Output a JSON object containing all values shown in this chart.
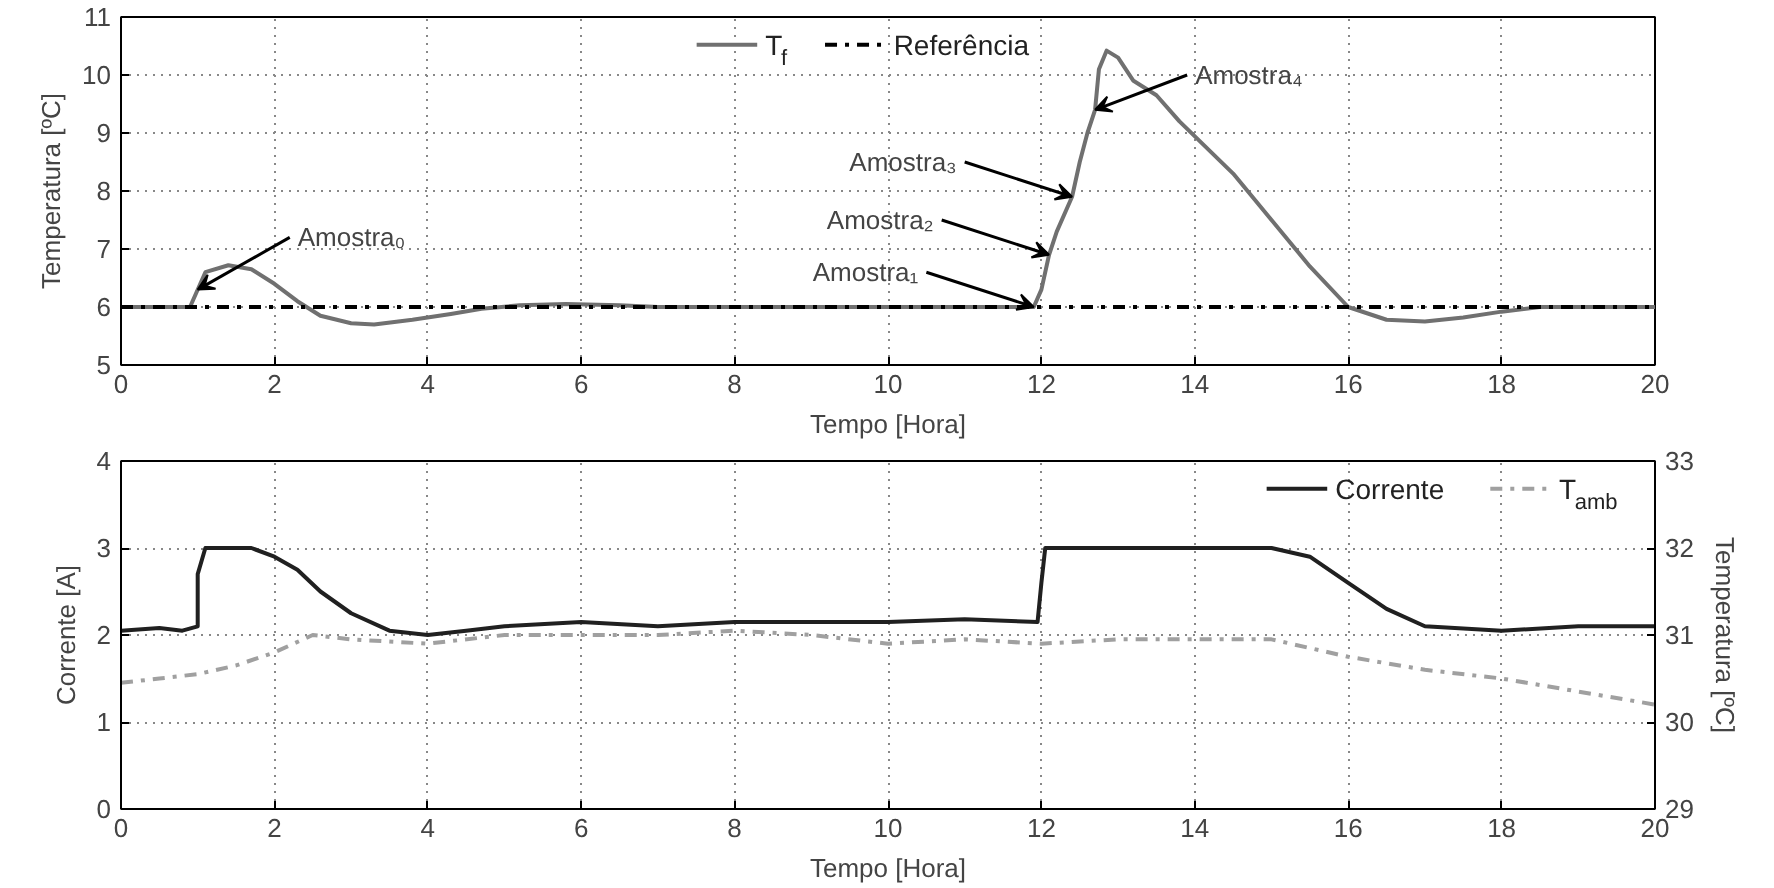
{
  "chart_data": [
    {
      "type": "line",
      "xlabel": "Tempo [Hora]",
      "ylabel": "Temperatura [ºC]",
      "xlim": [
        0,
        20
      ],
      "ylim": [
        5,
        11
      ],
      "xticks": [
        0,
        2,
        4,
        6,
        8,
        10,
        12,
        14,
        16,
        18,
        20
      ],
      "yticks": [
        5,
        6,
        7,
        8,
        9,
        10,
        11
      ],
      "grid": true,
      "legend": "top",
      "series": [
        {
          "name": "T$_{f}$",
          "color": "#707070",
          "line_style": "solid",
          "x": [
            0,
            0.9,
            1.1,
            1.4,
            1.7,
            2.0,
            2.3,
            2.6,
            3.0,
            3.3,
            3.8,
            4.3,
            4.7,
            5.2,
            5.8,
            6.5,
            7,
            8,
            9,
            10,
            11,
            11.9,
            12.0,
            12.1,
            12.2,
            12.4,
            12.5,
            12.6,
            12.7,
            12.75,
            12.85,
            13.0,
            13.2,
            13.5,
            13.8,
            14.5,
            15.0,
            15.5,
            16.0,
            16.5,
            17.0,
            17.5,
            18.0,
            18.5,
            19,
            20
          ],
          "values": [
            6.0,
            6.0,
            6.6,
            6.72,
            6.65,
            6.4,
            6.1,
            5.85,
            5.72,
            5.7,
            5.78,
            5.88,
            5.97,
            6.03,
            6.05,
            6.03,
            6.0,
            6.0,
            6.0,
            6.0,
            6.0,
            6.0,
            6.3,
            6.9,
            7.3,
            7.9,
            8.5,
            9.0,
            9.4,
            10.1,
            10.42,
            10.3,
            9.9,
            9.65,
            9.2,
            8.3,
            7.5,
            6.7,
            6.0,
            5.78,
            5.75,
            5.82,
            5.92,
            6.0,
            6.0,
            6.0
          ]
        },
        {
          "name": "Referência",
          "color": "#000000",
          "line_style": "dashdot",
          "x": [
            0,
            20
          ],
          "values": [
            6,
            6
          ]
        }
      ],
      "annotations": [
        {
          "text": "Amostra₀",
          "x": 1.0,
          "y": 6.3
        },
        {
          "text": "Amostra₁",
          "x": 11.9,
          "y": 6.0
        },
        {
          "text": "Amostra₂",
          "x": 12.1,
          "y": 6.9
        },
        {
          "text": "Amostra₃",
          "x": 12.4,
          "y": 7.9
        },
        {
          "text": "Amostra₄",
          "x": 12.7,
          "y": 9.4
        }
      ]
    },
    {
      "type": "line",
      "xlabel": "Tempo [Hora]",
      "ylabel": "Corrente [A]",
      "y2label": "Temperatura [ºC]",
      "xlim": [
        0,
        20
      ],
      "ylim": [
        0,
        4
      ],
      "y2lim": [
        29,
        33
      ],
      "xticks": [
        0,
        2,
        4,
        6,
        8,
        10,
        12,
        14,
        16,
        18,
        20
      ],
      "yticks": [
        0,
        1,
        2,
        3,
        4
      ],
      "y2ticks": [
        29,
        30,
        31,
        32,
        33
      ],
      "grid": true,
      "legend": "top right",
      "series": [
        {
          "name": "Corrente",
          "color": "#202020",
          "line_style": "solid",
          "x": [
            0,
            0.5,
            0.8,
            1.0,
            1.0,
            1.1,
            1.7,
            2.0,
            2.3,
            2.6,
            3.0,
            3.5,
            4.0,
            4.5,
            5,
            6,
            7,
            8,
            9,
            10,
            11,
            11.95,
            12.0,
            12.05,
            15.0,
            15.5,
            16,
            16.5,
            17,
            18,
            19,
            20
          ],
          "values": [
            2.05,
            2.08,
            2.05,
            2.1,
            2.7,
            3.0,
            3.0,
            2.9,
            2.75,
            2.5,
            2.25,
            2.05,
            2.0,
            2.05,
            2.1,
            2.15,
            2.1,
            2.15,
            2.15,
            2.15,
            2.18,
            2.15,
            2.6,
            3.0,
            3.0,
            2.9,
            2.6,
            2.3,
            2.1,
            2.05,
            2.1,
            2.1
          ]
        },
        {
          "name": "T$_{amb}$",
          "color": "#a0a0a0",
          "line_style": "dashdot",
          "axis": "y2",
          "x": [
            0,
            0.5,
            1,
            1.5,
            2,
            2.5,
            3,
            4,
            5,
            6,
            7,
            8,
            9,
            10,
            11,
            12,
            13,
            14,
            15,
            16,
            17,
            18,
            19,
            20
          ],
          "values": [
            30.45,
            30.5,
            30.55,
            30.65,
            30.8,
            31.0,
            30.95,
            30.9,
            31.0,
            31.0,
            31.0,
            31.05,
            31.0,
            30.9,
            30.95,
            30.9,
            30.95,
            30.95,
            30.95,
            30.75,
            30.6,
            30.5,
            30.35,
            30.2
          ]
        }
      ]
    }
  ]
}
